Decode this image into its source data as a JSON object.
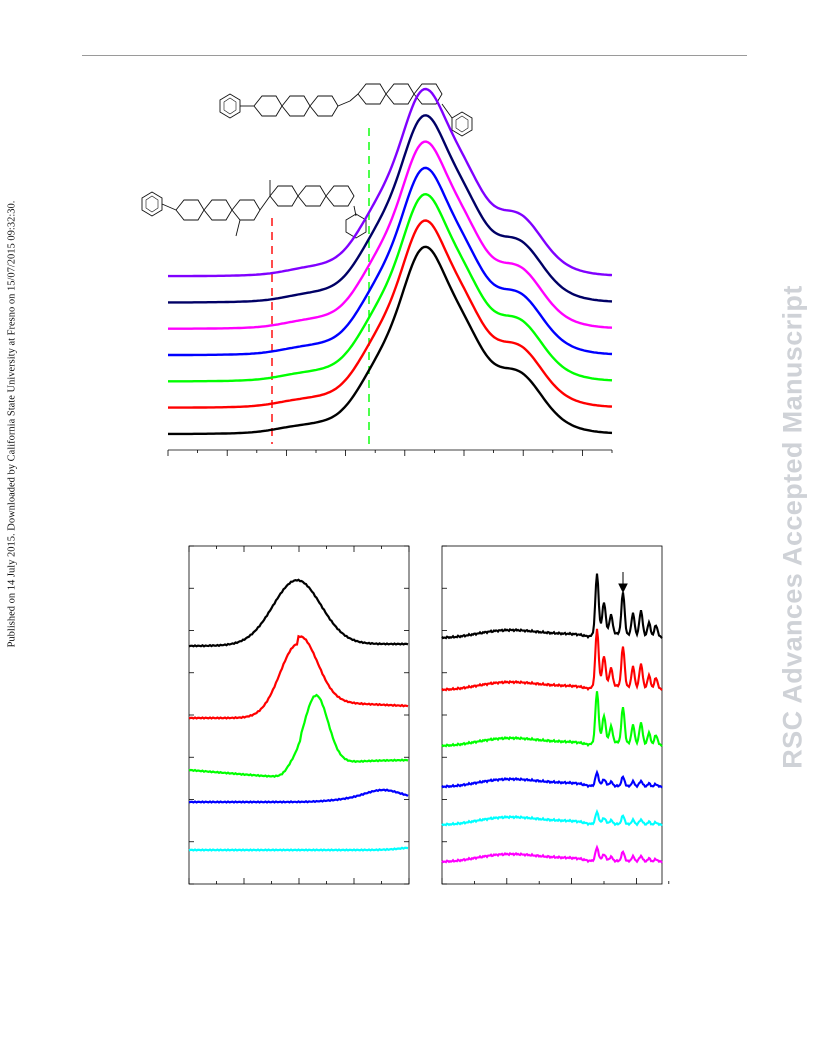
{
  "page": {
    "publication_note": "Published on 14 July 2015. Downloaded by California State University at Fresno on 15/07/2015 09:32:30.",
    "watermark": "RSC Advances Accepted Manuscript"
  },
  "colors": {
    "black": "#000000",
    "red": "#ff0000",
    "green": "#00ff00",
    "blue": "#0000ff",
    "magenta": "#ff00ff",
    "navy": "#000066",
    "purple": "#8000ff",
    "cyan": "#00ffff",
    "dashed_red": "#ff0000",
    "dashed_green": "#00ff00"
  },
  "icons": [
    "chemical-structure-top",
    "chemical-structure-left",
    "arrow-down-icon"
  ],
  "chart_data": [
    {
      "type": "line",
      "title": "",
      "xlabel": "",
      "ylabel": "",
      "description_of_markers": "vertical dashed reference lines (red, green)",
      "series": [
        {
          "color": "black",
          "offset_rank": 0
        },
        {
          "color": "red",
          "offset_rank": 1
        },
        {
          "color": "green",
          "offset_rank": 2
        },
        {
          "color": "blue",
          "offset_rank": 3
        },
        {
          "color": "magenta",
          "offset_rank": 4
        },
        {
          "color": "navy",
          "offset_rank": 5
        },
        {
          "color": "purple",
          "offset_rank": 6
        }
      ]
    },
    {
      "type": "line",
      "title": "",
      "xlabel": "",
      "ylabel": "",
      "series": [
        {
          "color": "black"
        },
        {
          "color": "red"
        },
        {
          "color": "green"
        },
        {
          "color": "blue"
        },
        {
          "color": "cyan"
        }
      ]
    },
    {
      "type": "line",
      "title": "",
      "xlabel": "",
      "ylabel": "",
      "series": [
        {
          "color": "black"
        },
        {
          "color": "red"
        },
        {
          "color": "green"
        },
        {
          "color": "blue"
        },
        {
          "color": "cyan"
        },
        {
          "color": "magenta"
        }
      ]
    }
  ]
}
